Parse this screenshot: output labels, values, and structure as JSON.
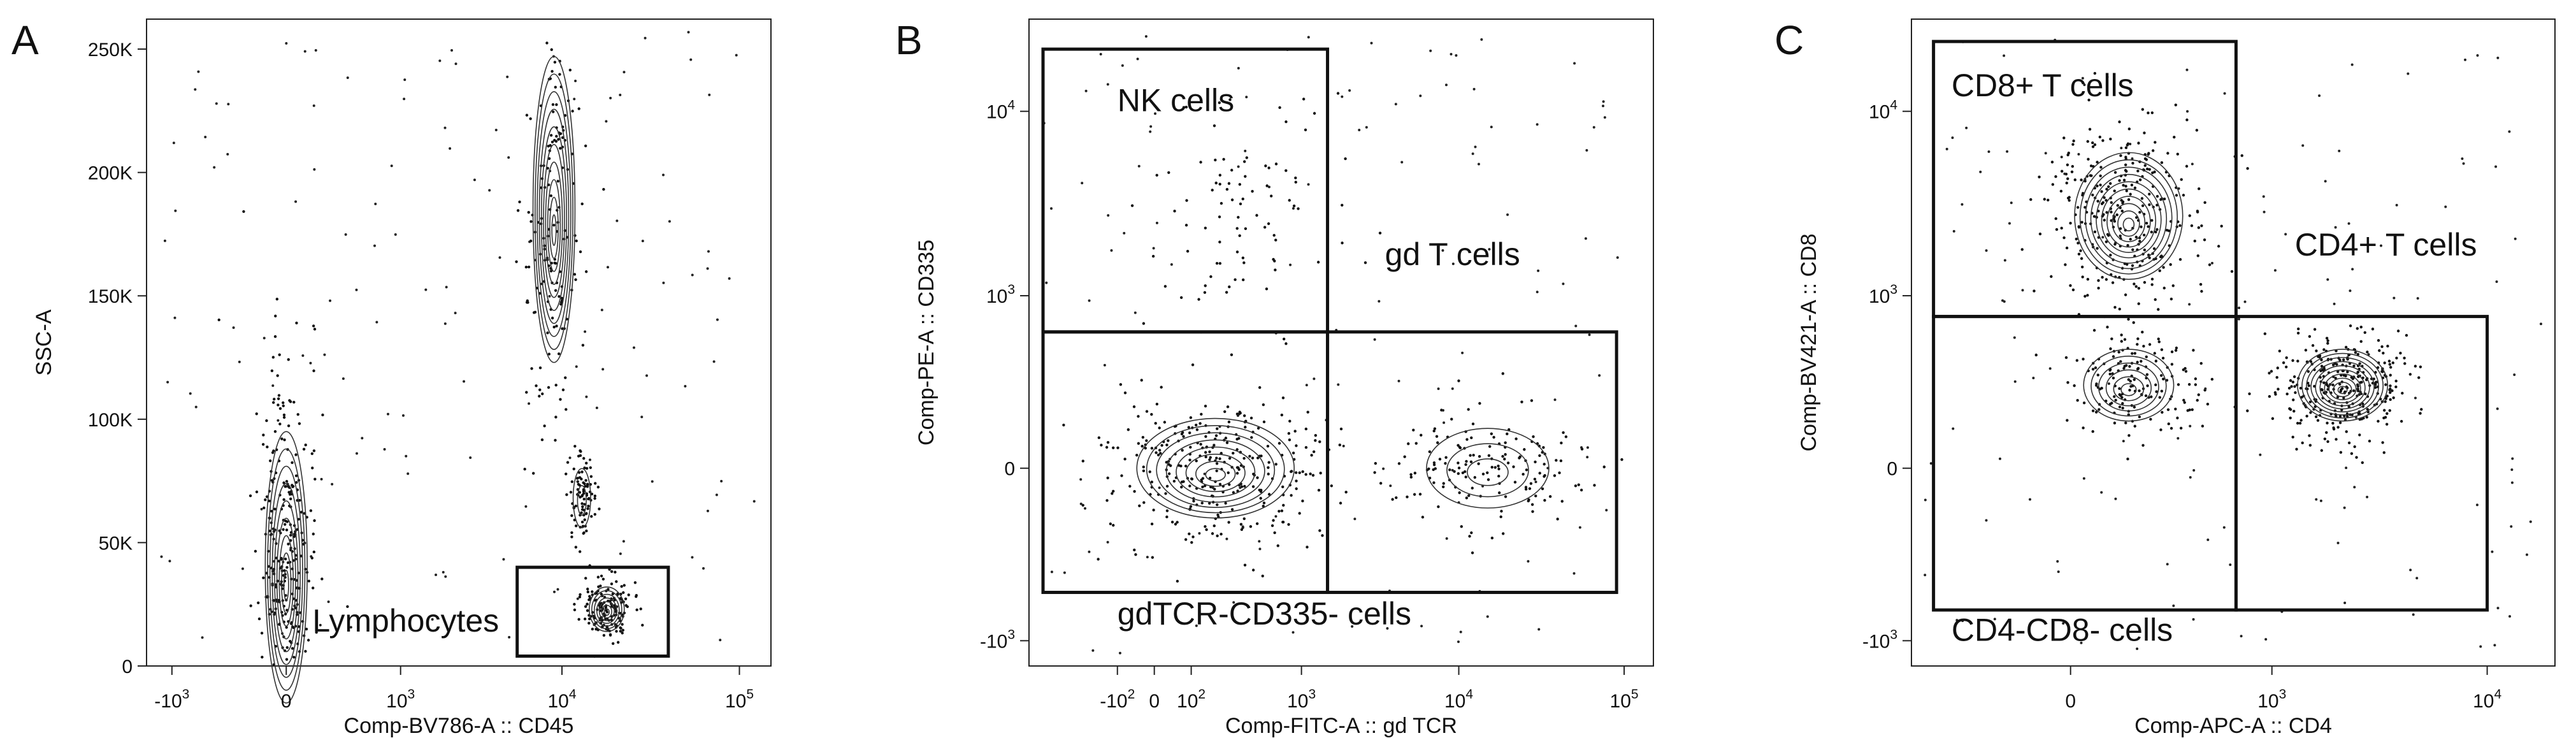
{
  "chart_data": [
    {
      "type": "scatter",
      "panel_label": "A",
      "xlabel": "Comp-BV786-A :: CD45",
      "ylabel": "SSC-A",
      "x_scale": "biexponential",
      "y_scale": "linear",
      "xlim": [
        -1500,
        150000
      ],
      "ylim": [
        0,
        262144
      ],
      "x_ticks": [
        {
          "value": -1000,
          "base": "-10",
          "exp": "3"
        },
        {
          "value": 0,
          "base": "0",
          "exp": ""
        },
        {
          "value": 1000,
          "base": "10",
          "exp": "3"
        },
        {
          "value": 10000,
          "base": "10",
          "exp": "4"
        },
        {
          "value": 100000,
          "base": "10",
          "exp": "5"
        }
      ],
      "y_ticks": [
        {
          "value": 0,
          "label": "0"
        },
        {
          "value": 50000,
          "label": "50K"
        },
        {
          "value": 100000,
          "label": "100K"
        },
        {
          "value": 150000,
          "label": "150K"
        },
        {
          "value": 200000,
          "label": "200K"
        },
        {
          "value": 250000,
          "label": "250K"
        }
      ],
      "populations": [
        {
          "cx": 0,
          "cy": 40000,
          "sx": 0.12,
          "sy": 0.35,
          "log_y": false,
          "levels": 9,
          "y_spread": 55000,
          "density": "high"
        },
        {
          "cx": 9000,
          "cy": 185000,
          "sx": 0.12,
          "sy": 0.18,
          "log_y": false,
          "levels": 10,
          "y_spread": 62000,
          "density": "medium"
        },
        {
          "cx": 18000,
          "cy": 23000,
          "sx": 0.1,
          "sy": 0.1,
          "log_y": false,
          "levels": 7,
          "y_spread": 9000,
          "density": "medium"
        },
        {
          "cx": 13000,
          "cy": 68000,
          "sx": 0.05,
          "sy": 0.1,
          "log_y": false,
          "levels": 2,
          "y_spread": 12000,
          "density": "low"
        }
      ],
      "gates": [
        {
          "label": "Lymphocytes",
          "x0": 5500,
          "x1": 40000,
          "y0": 4000,
          "y1": 40000,
          "label_anchor": {
            "x": 120,
            "y": 14000
          }
        }
      ]
    },
    {
      "type": "scatter",
      "panel_label": "B",
      "xlabel": "Comp-FITC-A :: gd TCR",
      "ylabel": "Comp-PE-A :: CD335",
      "x_scale": "biexponential",
      "y_scale": "biexponential",
      "xlim": [
        -700,
        150000
      ],
      "ylim": [
        -1400,
        30000
      ],
      "x_ticks": [
        {
          "value": -100,
          "base": "-10",
          "exp": "2"
        },
        {
          "value": 0,
          "base": "0",
          "exp": ""
        },
        {
          "value": 100,
          "base": "10",
          "exp": "2"
        },
        {
          "value": 1000,
          "base": "10",
          "exp": "3"
        },
        {
          "value": 10000,
          "base": "10",
          "exp": "4"
        },
        {
          "value": 100000,
          "base": "10",
          "exp": "5"
        }
      ],
      "y_ticks": [
        {
          "value": -1000,
          "base": "-10",
          "exp": "3"
        },
        {
          "value": 0,
          "base": "0",
          "exp": ""
        },
        {
          "value": 1000,
          "base": "10",
          "exp": "3"
        },
        {
          "value": 10000,
          "base": "10",
          "exp": "4"
        }
      ],
      "populations": [
        {
          "cx": 200,
          "cy": 0,
          "sx": 0.45,
          "sy": 0.0,
          "log_y": true,
          "levels": 8,
          "y_spread": 120,
          "density": "high"
        },
        {
          "cx": 15000,
          "cy": 0,
          "sx": 0.35,
          "sy": 0.0,
          "log_y": true,
          "levels": 3,
          "y_spread": 90,
          "density": "medium"
        },
        {
          "cx": 350,
          "cy": 2500,
          "sx": 0.4,
          "sy": 0.45,
          "log_y": true,
          "levels": 0,
          "y_spread": 0,
          "density": "low"
        }
      ],
      "gates": [
        {
          "label": "NK cells",
          "x0": -550,
          "x1": 1500,
          "y0": 600,
          "y1": 21000,
          "label_anchor": {
            "x": -100,
            "y": 10000
          }
        },
        {
          "label": "gd T cells",
          "x0": 1500,
          "x1": 90000,
          "y0": -500,
          "y1": 600,
          "label_anchor": {
            "x": 3500,
            "y": 1500
          }
        },
        {
          "label": "gdTCR-CD335- cells",
          "x0": -550,
          "x1": 1500,
          "y0": -500,
          "y1": 600,
          "label_anchor": {
            "x": -100,
            "y": -800
          }
        }
      ]
    },
    {
      "type": "scatter",
      "panel_label": "C",
      "xlabel": "Comp-APC-A :: CD4",
      "ylabel": "Comp-BV421-A :: CD8",
      "x_scale": "biexponential",
      "y_scale": "biexponential",
      "xlim": [
        -600,
        20000
      ],
      "ylim": [
        -1400,
        30000
      ],
      "x_ticks": [
        {
          "value": 0,
          "base": "0",
          "exp": ""
        },
        {
          "value": 1000,
          "base": "10",
          "exp": "3"
        },
        {
          "value": 10000,
          "base": "10",
          "exp": "4"
        }
      ],
      "y_ticks": [
        {
          "value": -1000,
          "base": "-10",
          "exp": "3"
        },
        {
          "value": 0,
          "base": "0",
          "exp": ""
        },
        {
          "value": 1000,
          "base": "10",
          "exp": "3"
        },
        {
          "value": 10000,
          "base": "10",
          "exp": "4"
        }
      ],
      "populations": [
        {
          "cx": 120,
          "cy": 2800,
          "sx": 0.3,
          "sy": 0.35,
          "log_y": true,
          "levels": 10,
          "y_spread": 0,
          "density": "high"
        },
        {
          "cx": 2200,
          "cy": 250,
          "sx": 0.25,
          "sy": 0.0,
          "log_y": true,
          "levels": 10,
          "y_spread": 160,
          "density": "high"
        },
        {
          "cx": 120,
          "cy": 250,
          "sx": 0.25,
          "sy": 0.0,
          "log_y": true,
          "levels": 6,
          "y_spread": 160,
          "density": "medium"
        }
      ],
      "gates": [
        {
          "label": "CD8+ T cells",
          "x0": -450,
          "x1": 650,
          "y0": 750,
          "y1": 23000,
          "label_anchor": {
            "x": -350,
            "y": 12000
          }
        },
        {
          "label": "CD4+ T cells",
          "x0": 650,
          "x1": 10000,
          "y0": -650,
          "y1": 750,
          "label_anchor": {
            "x": 1300,
            "y": 1700
          }
        },
        {
          "label": "CD4-CD8- cells",
          "x0": -450,
          "x1": 650,
          "y0": -650,
          "y1": 750,
          "label_anchor": {
            "x": -350,
            "y": -1000
          }
        }
      ]
    }
  ]
}
